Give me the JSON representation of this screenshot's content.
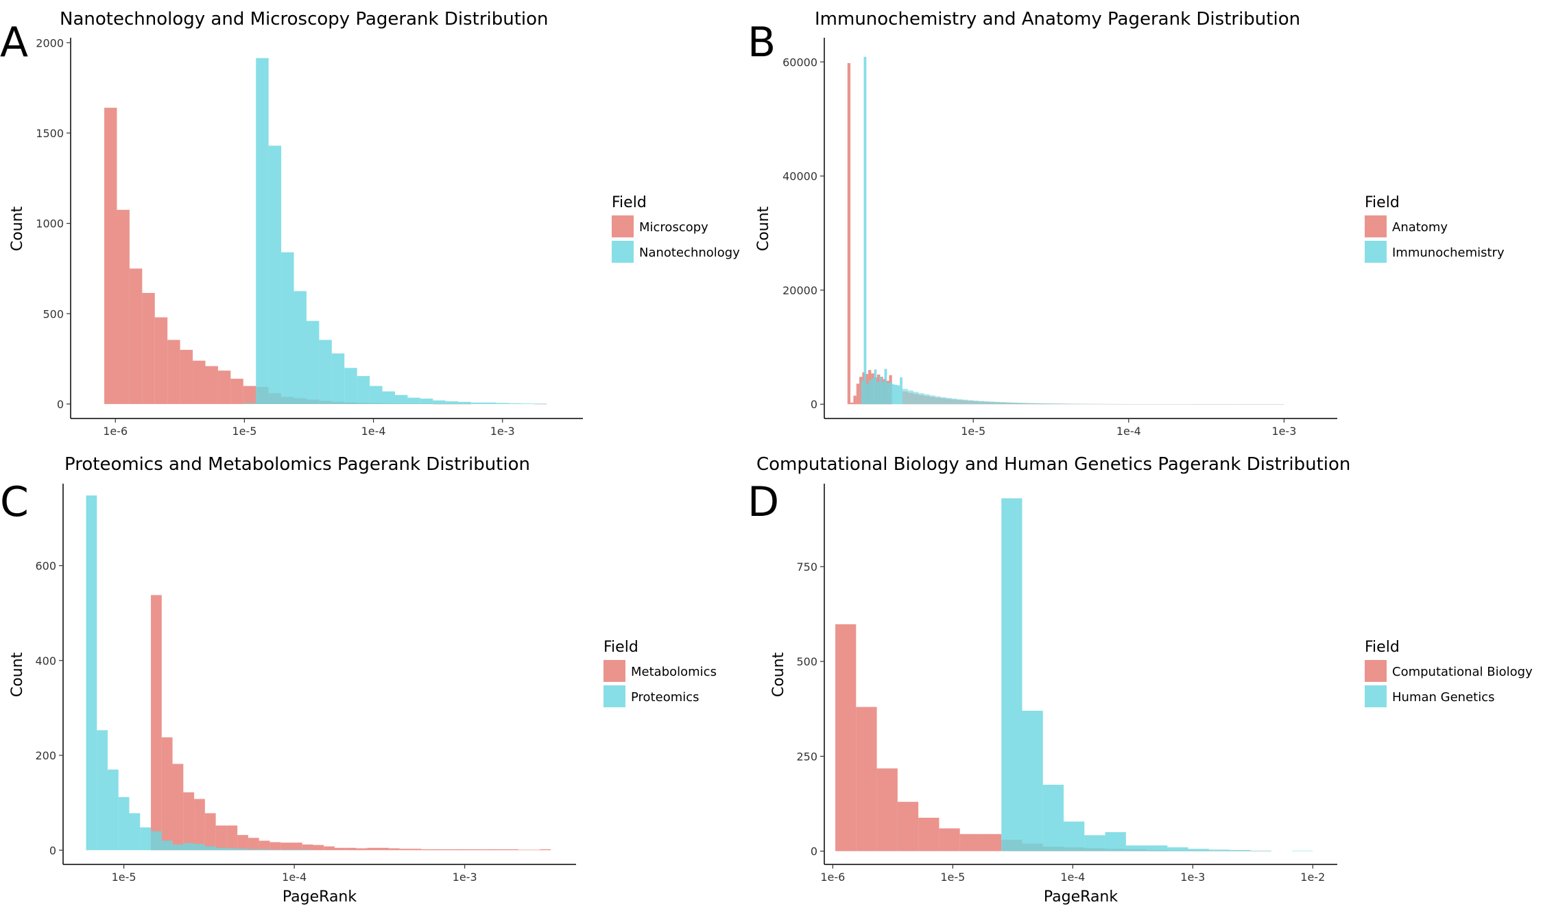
{
  "palette": {
    "series_a": "#E57C74",
    "series_b": "#6DD7E0",
    "opacity": 0.82
  },
  "chart_data": [
    {
      "panel": "A",
      "type": "histogram",
      "title": "Nanotechnology and Microscopy Pagerank Distribution",
      "xlabel": "",
      "ylabel": "Count",
      "x_scale": "log10",
      "x_range": [
        4.5e-07,
        0.0042
      ],
      "xticks": [
        {
          "v": 1e-06,
          "label": "1e-6"
        },
        {
          "v": 1e-05,
          "label": "1e-5"
        },
        {
          "v": 0.0001,
          "label": "1e-4"
        },
        {
          "v": 0.001,
          "label": "1e-3"
        }
      ],
      "y_range": [
        -80,
        2020
      ],
      "yticks": [
        0,
        500,
        1000,
        1500,
        2000
      ],
      "legend": {
        "title": "Field",
        "position": "right"
      },
      "series": [
        {
          "name": "Microscopy",
          "x_start": 8.2e-07,
          "x_end": 0.0022,
          "bins": 35,
          "counts": [
            1640,
            1075,
            750,
            615,
            480,
            355,
            300,
            240,
            210,
            185,
            140,
            100,
            95,
            60,
            40,
            32,
            25,
            18,
            12,
            9,
            6,
            5,
            4,
            3,
            2,
            2,
            1,
            1,
            1,
            0,
            0,
            0,
            0,
            0,
            1
          ]
        },
        {
          "name": "Nanotechnology",
          "x_start": 8.2e-07,
          "x_end": 0.0022,
          "bins": 35,
          "counts": [
            0,
            0,
            0,
            0,
            0,
            0,
            0,
            0,
            0,
            0,
            0,
            5,
            1915,
            1430,
            840,
            625,
            460,
            355,
            280,
            200,
            155,
            100,
            70,
            50,
            35,
            30,
            20,
            15,
            12,
            8,
            8,
            6,
            4,
            3,
            2
          ]
        }
      ]
    },
    {
      "panel": "B",
      "type": "histogram",
      "title": "Immunochemistry and Anatomy Pagerank Distribution",
      "xlabel": "",
      "ylabel": "Count",
      "x_scale": "log10",
      "x_range": [
        1.1e-06,
        0.0022
      ],
      "xticks": [
        {
          "v": 1e-05,
          "label": "1e-5"
        },
        {
          "v": 0.0001,
          "label": "1e-4"
        },
        {
          "v": 0.001,
          "label": "1e-3"
        }
      ],
      "y_range": [
        -2500,
        64000
      ],
      "yticks": [
        0,
        20000,
        40000,
        60000
      ],
      "legend": {
        "title": "Field",
        "position": "right"
      },
      "series": [
        {
          "name": "Anatomy",
          "x_start": 1.55e-06,
          "x_end": 3e-06,
          "bins": 15,
          "counts": [
            59800,
            300,
            1500,
            3600,
            4800,
            5600,
            5300,
            6000,
            5400,
            4700,
            5200,
            4800,
            4400,
            4100,
            5100
          ]
        },
        {
          "name": "Immunochemistry",
          "x_start": 1.9e-06,
          "x_end": 3.5e-06,
          "bins": 16,
          "counts": [
            4200,
            60900,
            3500,
            4200,
            4600,
            6100,
            3900,
            4800,
            3900,
            6200,
            3700,
            3900,
            3500,
            3400,
            3300,
            4700
          ]
        }
      ],
      "tail": [
        {
          "x_start": 3.5e-06,
          "x_end": 0.001,
          "bins": 70,
          "peak": 3000
        }
      ]
    },
    {
      "panel": "C",
      "type": "histogram",
      "title": "Proteomics and Metabolomics Pagerank Distribution",
      "xlabel": "PageRank",
      "ylabel": "Count",
      "x_scale": "log10",
      "x_range": [
        4.4e-06,
        0.0045
      ],
      "xticks": [
        {
          "v": 1e-05,
          "label": "1e-5"
        },
        {
          "v": 0.0001,
          "label": "1e-4"
        },
        {
          "v": 0.001,
          "label": "1e-3"
        }
      ],
      "y_range": [
        -30,
        770
      ],
      "yticks": [
        0,
        200,
        400,
        600
      ],
      "legend": {
        "title": "Field",
        "position": "right"
      },
      "series": [
        {
          "name": "Metabolomics",
          "x_start": 6e-06,
          "x_end": 0.0032,
          "bins": 43,
          "counts": [
            0,
            0,
            0,
            0,
            0,
            0,
            538,
            238,
            182,
            122,
            108,
            78,
            52,
            52,
            32,
            26,
            20,
            17,
            16,
            16,
            12,
            11,
            8,
            5,
            5,
            4,
            5,
            5,
            4,
            3,
            3,
            2,
            2,
            2,
            2,
            2,
            2,
            2,
            2,
            2,
            1,
            1,
            2
          ]
        },
        {
          "name": "Proteomics",
          "x_start": 6e-06,
          "x_end": 0.0032,
          "bins": 43,
          "counts": [
            748,
            253,
            170,
            112,
            78,
            48,
            40,
            20,
            12,
            15,
            13,
            8,
            5,
            4,
            3,
            2,
            2,
            1,
            1,
            1,
            1,
            0,
            0,
            0,
            0,
            0,
            0,
            0,
            0,
            0,
            0,
            0,
            0,
            0,
            0,
            0,
            0,
            0,
            0,
            0,
            0,
            0,
            0
          ]
        }
      ]
    },
    {
      "panel": "D",
      "type": "histogram",
      "title": "Computational Biology and Human Genetics Pagerank Distribution",
      "xlabel": "PageRank",
      "ylabel": "Count",
      "x_scale": "log10",
      "x_range": [
        8.5e-07,
        0.016
      ],
      "xticks": [
        {
          "v": 1e-06,
          "label": "1e-6"
        },
        {
          "v": 1e-05,
          "label": "1e-5"
        },
        {
          "v": 0.0001,
          "label": "1e-4"
        },
        {
          "v": 0.001,
          "label": "1e-3"
        },
        {
          "v": 0.01,
          "label": "1e-2"
        }
      ],
      "y_range": [
        -35,
        965
      ],
      "yticks": [
        0,
        250,
        500,
        750
      ],
      "legend": {
        "title": "Field",
        "position": "right"
      },
      "series": [
        {
          "name": "Computational Biology",
          "x_start": 1.05e-06,
          "x_end": 0.01,
          "bins": 23,
          "counts": [
            598,
            380,
            218,
            130,
            88,
            60,
            45,
            45,
            30,
            20,
            12,
            10,
            8,
            6,
            5,
            3,
            2,
            2,
            1,
            1,
            1,
            0,
            0
          ]
        },
        {
          "name": "Human Genetics",
          "x_start": 1.05e-06,
          "x_end": 0.01,
          "bins": 23,
          "counts": [
            0,
            0,
            0,
            0,
            0,
            0,
            0,
            0,
            930,
            370,
            175,
            78,
            42,
            50,
            15,
            15,
            10,
            6,
            4,
            3,
            1,
            0,
            1
          ]
        }
      ]
    }
  ]
}
